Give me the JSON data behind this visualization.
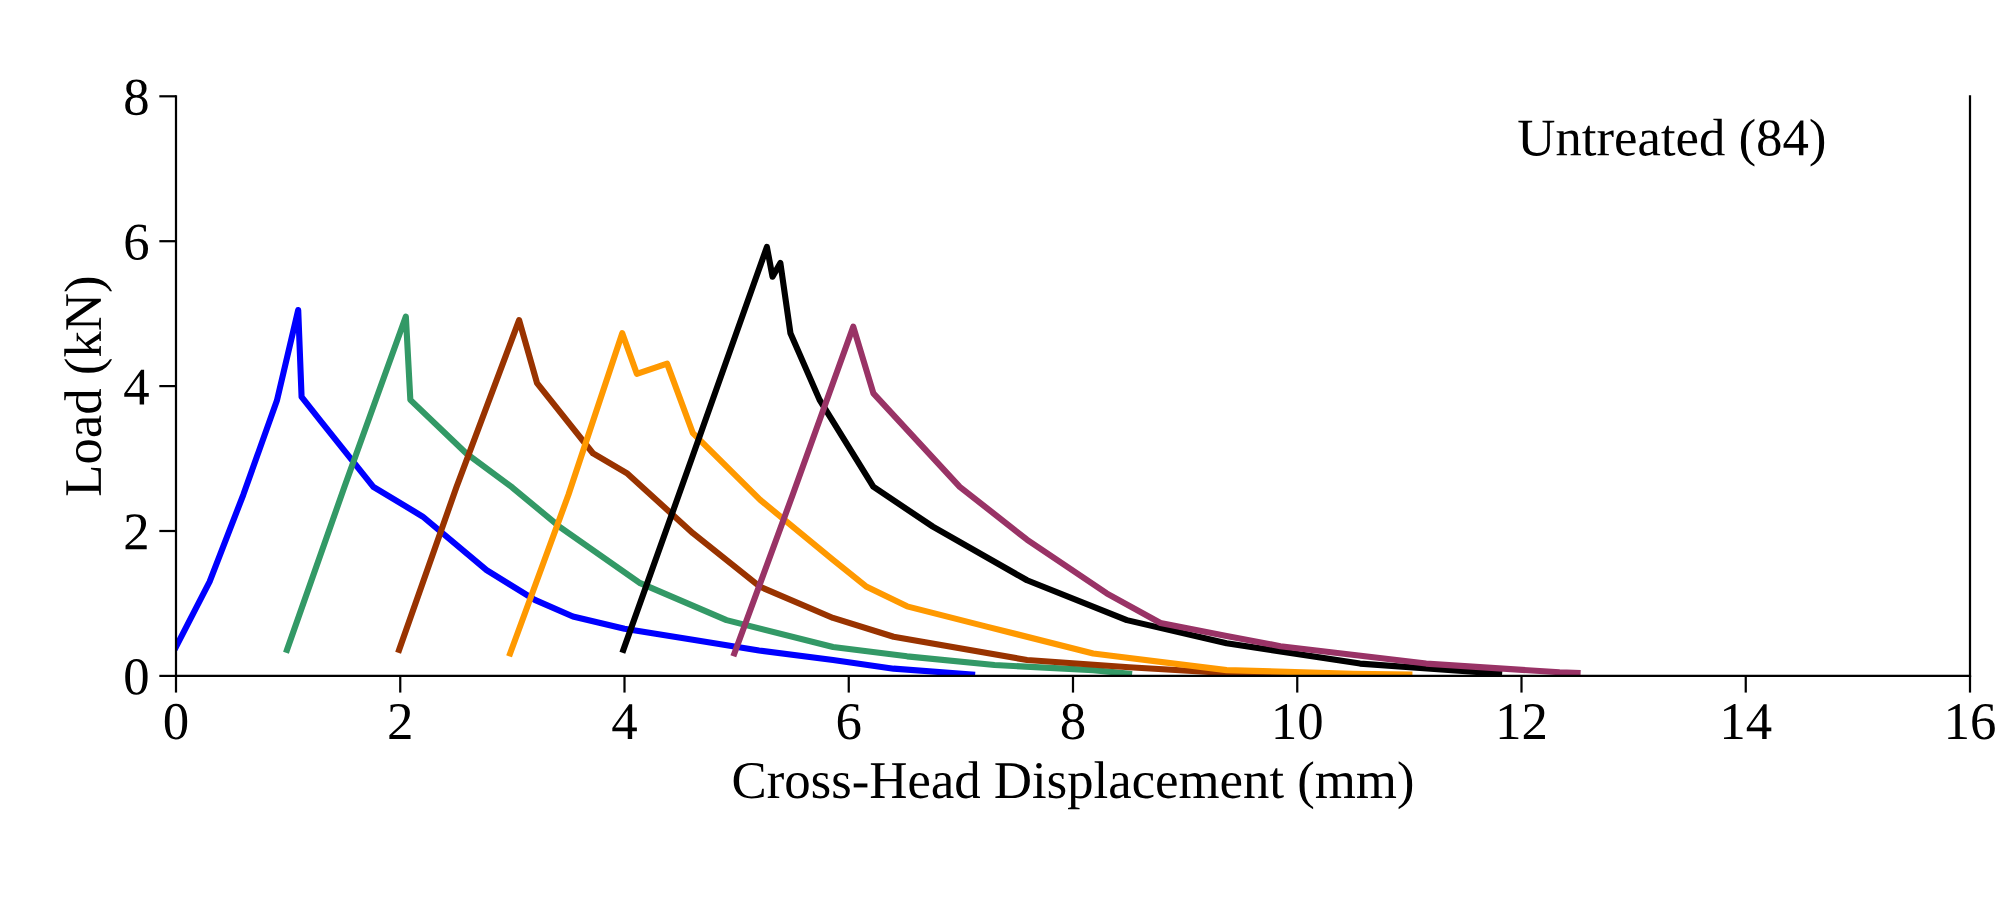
{
  "chart_data": {
    "type": "line",
    "xlabel": "Cross-Head Displacement (mm)",
    "ylabel": "Load (kN)",
    "annotations": [
      "Untreated (84)"
    ],
    "xlim": [
      0,
      16
    ],
    "ylim": [
      0,
      8
    ],
    "xticks": [
      0,
      2,
      4,
      6,
      8,
      10,
      12,
      14,
      16
    ],
    "yticks": [
      0,
      2,
      4,
      6,
      8
    ],
    "grid": false,
    "legend": false,
    "marker": "none",
    "line_style": "solid",
    "series": [
      {
        "color": "#0000ff",
        "x": [
          0,
          0.3,
          0.6,
          0.9,
          1.09,
          1.12,
          1.3,
          1.76,
          2.2,
          2.77,
          3.2,
          3.54,
          4.0,
          4.61,
          5.2,
          5.86,
          6.4,
          7.1
        ],
        "values": [
          0.4,
          1.3,
          2.5,
          3.8,
          5.05,
          3.85,
          3.5,
          2.61,
          2.2,
          1.46,
          1.05,
          0.82,
          0.65,
          0.5,
          0.35,
          0.22,
          0.1,
          0.02
        ]
      },
      {
        "color": "#339966",
        "x": [
          0.99,
          1.5,
          2.05,
          2.09,
          2.59,
          3.0,
          3.42,
          4.14,
          4.91,
          5.86,
          6.52,
          7.3,
          8.18,
          8.5
        ],
        "values": [
          0.36,
          2.6,
          4.96,
          3.81,
          3.07,
          2.6,
          2.06,
          1.28,
          0.77,
          0.4,
          0.27,
          0.15,
          0.08,
          0.03
        ]
      },
      {
        "color": "#993300",
        "x": [
          1.99,
          2.5,
          3.06,
          3.22,
          3.72,
          4.02,
          4.61,
          5.21,
          5.86,
          6.4,
          7.59,
          8.5,
          9.37,
          10.0
        ],
        "values": [
          0.36,
          2.6,
          4.91,
          4.04,
          3.07,
          2.8,
          1.97,
          1.23,
          0.8,
          0.54,
          0.22,
          0.12,
          0.04,
          0.02
        ]
      },
      {
        "color": "#ff9900",
        "x": [
          2.98,
          3.5,
          3.98,
          4.11,
          4.38,
          4.61,
          5.21,
          5.86,
          6.16,
          6.52,
          7.23,
          8.18,
          9.37,
          10.5,
          11.0
        ],
        "values": [
          0.31,
          2.5,
          4.73,
          4.17,
          4.31,
          3.35,
          2.43,
          1.6,
          1.23,
          0.96,
          0.68,
          0.31,
          0.08,
          0.03,
          0.02
        ]
      },
      {
        "color": "#000000",
        "x": [
          3.99,
          4.6,
          5.27,
          5.32,
          5.39,
          5.48,
          5.74,
          6.22,
          6.75,
          7.59,
          8.48,
          9.37,
          10.56,
          11.63,
          11.8
        ],
        "values": [
          0.36,
          3.0,
          5.92,
          5.51,
          5.7,
          4.73,
          3.81,
          2.61,
          2.06,
          1.32,
          0.77,
          0.45,
          0.17,
          0.05,
          0.03
        ]
      },
      {
        "color": "#993366",
        "x": [
          4.98,
          5.5,
          6.04,
          6.22,
          6.99,
          7.59,
          8.3,
          8.78,
          9.37,
          9.85,
          11.15,
          12.34,
          12.5
        ],
        "values": [
          0.31,
          2.5,
          4.82,
          3.9,
          2.61,
          1.88,
          1.14,
          0.73,
          0.55,
          0.41,
          0.17,
          0.05,
          0.04
        ]
      }
    ]
  }
}
